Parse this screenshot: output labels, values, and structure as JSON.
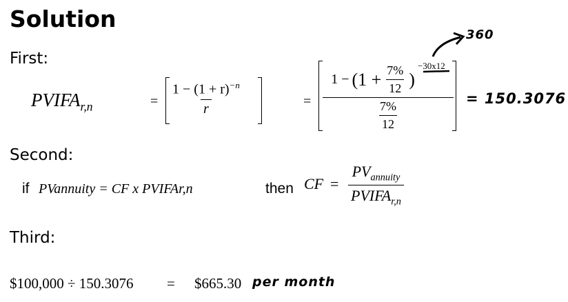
{
  "title": "Solution",
  "first": {
    "heading": "First:",
    "pvifa_label": "PVIFA",
    "pvifa_sub": "r,n",
    "eq1": "=",
    "formula_num": "1 − (1 + r)",
    "formula_exp": "−n",
    "formula_den": "r",
    "eq2": "=",
    "sub_num_one": "1 −",
    "sub_num_paren_left": "(1 +",
    "sub_rate_num": "7%",
    "sub_rate_den": "12",
    "sub_num_paren_right": ")",
    "sub_exp": "−30x12",
    "sub_den_num": "7%",
    "sub_den_den": "12",
    "result": "= 150.3076",
    "annotation_360": "360"
  },
  "second": {
    "heading": "Second:",
    "if_word": "if",
    "if_expr": "PVannuity = CF x PVIFAr,n",
    "then_word": "then",
    "cf": "CF",
    "eq": "=",
    "num_main": "PV",
    "num_sub": "annuity",
    "den_main": "PVIFA",
    "den_sub": "r,n"
  },
  "third": {
    "heading": "Third:",
    "calc": "$100,000 ÷ 150.3076",
    "eq": "=",
    "answer": "$665.30",
    "note": "per month"
  }
}
